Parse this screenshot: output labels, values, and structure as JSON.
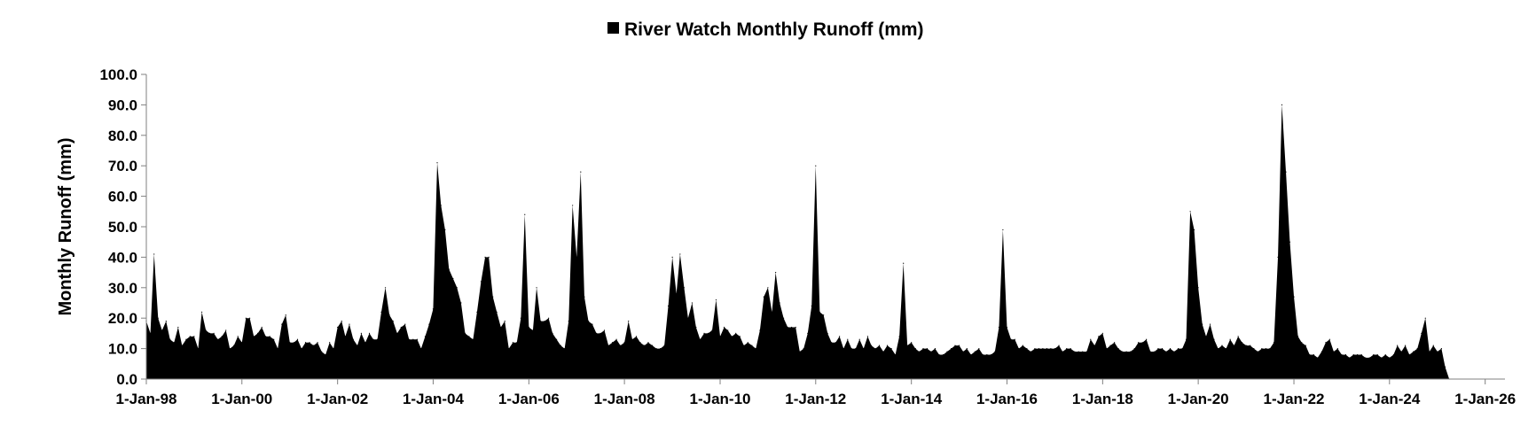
{
  "chart_data": {
    "type": "area",
    "title": "",
    "xlabel": "",
    "ylabel": "Monthly Runoff (mm)",
    "ylim": [
      0,
      100
    ],
    "yticks": [
      "0.0",
      "10.0",
      "20.0",
      "30.0",
      "40.0",
      "50.0",
      "60.0",
      "70.0",
      "80.0",
      "90.0",
      "100.0"
    ],
    "xlim": [
      "1998-01-01",
      "2026-06-01"
    ],
    "xticks": [
      {
        "date": "1998-01-01",
        "label": "1-Jan-98"
      },
      {
        "date": "2000-01-01",
        "label": "1-Jan-00"
      },
      {
        "date": "2002-01-01",
        "label": "1-Jan-02"
      },
      {
        "date": "2004-01-01",
        "label": "1-Jan-04"
      },
      {
        "date": "2006-01-01",
        "label": "1-Jan-06"
      },
      {
        "date": "2008-01-01",
        "label": "1-Jan-08"
      },
      {
        "date": "2010-01-01",
        "label": "1-Jan-10"
      },
      {
        "date": "2012-01-01",
        "label": "1-Jan-12"
      },
      {
        "date": "2014-01-01",
        "label": "1-Jan-14"
      },
      {
        "date": "2016-01-01",
        "label": "1-Jan-16"
      },
      {
        "date": "2018-01-01",
        "label": "1-Jan-18"
      },
      {
        "date": "2020-01-01",
        "label": "1-Jan-20"
      },
      {
        "date": "2022-01-01",
        "label": "1-Jan-22"
      },
      {
        "date": "2024-01-01",
        "label": "1-Jan-24"
      },
      {
        "date": "2026-01-01",
        "label": "1-Jan-26"
      }
    ],
    "grid": false,
    "legend": {
      "position": "top-center"
    },
    "series": [
      {
        "name": "River Watch Monthly Runoff (mm)",
        "color": "#000000",
        "start": "1998-01",
        "frequency": "monthly",
        "values": [
          19,
          15,
          41,
          20,
          16,
          19,
          13,
          12,
          17,
          11,
          13,
          14,
          14,
          10,
          22,
          16,
          15,
          15,
          13,
          14,
          16,
          10,
          11,
          14,
          12,
          20,
          20,
          14,
          15,
          17,
          14,
          14,
          13,
          10,
          18,
          21,
          12,
          12,
          13,
          10,
          12,
          12,
          11,
          12,
          9,
          8,
          12,
          10,
          17,
          19,
          14,
          18,
          13,
          11,
          15,
          12,
          15,
          13,
          13,
          22,
          30,
          21,
          19,
          15,
          17,
          18,
          13,
          13,
          13,
          10,
          14,
          18,
          23,
          71,
          57,
          49,
          36,
          33,
          30,
          25,
          15,
          14,
          13,
          22,
          32,
          40,
          40,
          27,
          22,
          17,
          19,
          10,
          12,
          12,
          20,
          54,
          17,
          16,
          30,
          19,
          19,
          20,
          15,
          13,
          11,
          10,
          19,
          57,
          40,
          68,
          27,
          19,
          18,
          15,
          15,
          16,
          11,
          12,
          13,
          11,
          12,
          19,
          13,
          14,
          12,
          11,
          12,
          11,
          10,
          10,
          11,
          24,
          40,
          28,
          41,
          30,
          20,
          25,
          17,
          13,
          15,
          15,
          16,
          26,
          14,
          17,
          16,
          14,
          15,
          14,
          11,
          12,
          11,
          10,
          16,
          27,
          30,
          22,
          35,
          25,
          20,
          17,
          17,
          17,
          9,
          10,
          15,
          24,
          70,
          22,
          21,
          15,
          12,
          12,
          14,
          10,
          13,
          10,
          10,
          13,
          10,
          14,
          11,
          10,
          11,
          9,
          11,
          10,
          8,
          14,
          38,
          11,
          12,
          10,
          9,
          10,
          10,
          9,
          10,
          8,
          8,
          9,
          10,
          11,
          11,
          9,
          10,
          8,
          9,
          10,
          8,
          8,
          8,
          9,
          17,
          49,
          17,
          13,
          13,
          10,
          11,
          10,
          9,
          10,
          10,
          10,
          10,
          10,
          10,
          11,
          9,
          10,
          10,
          9,
          9,
          9,
          9,
          13,
          11,
          14,
          15,
          10,
          11,
          12,
          10,
          9,
          9,
          9,
          10,
          12,
          12,
          13,
          9,
          9,
          10,
          10,
          9,
          10,
          9,
          10,
          10,
          13,
          55,
          49,
          30,
          18,
          14,
          18,
          13,
          10,
          11,
          10,
          13,
          11,
          14,
          12,
          11,
          11,
          10,
          9,
          10,
          10,
          10,
          12,
          40,
          90,
          68,
          45,
          27,
          14,
          12,
          11,
          8,
          8,
          7,
          9,
          12,
          13,
          9,
          10,
          8,
          8,
          7,
          8,
          8,
          8,
          7,
          7,
          8,
          8,
          7,
          8,
          7,
          8,
          11,
          9,
          11,
          8,
          9,
          10,
          15,
          20,
          9,
          11,
          9,
          10,
          4,
          0
        ]
      }
    ]
  }
}
